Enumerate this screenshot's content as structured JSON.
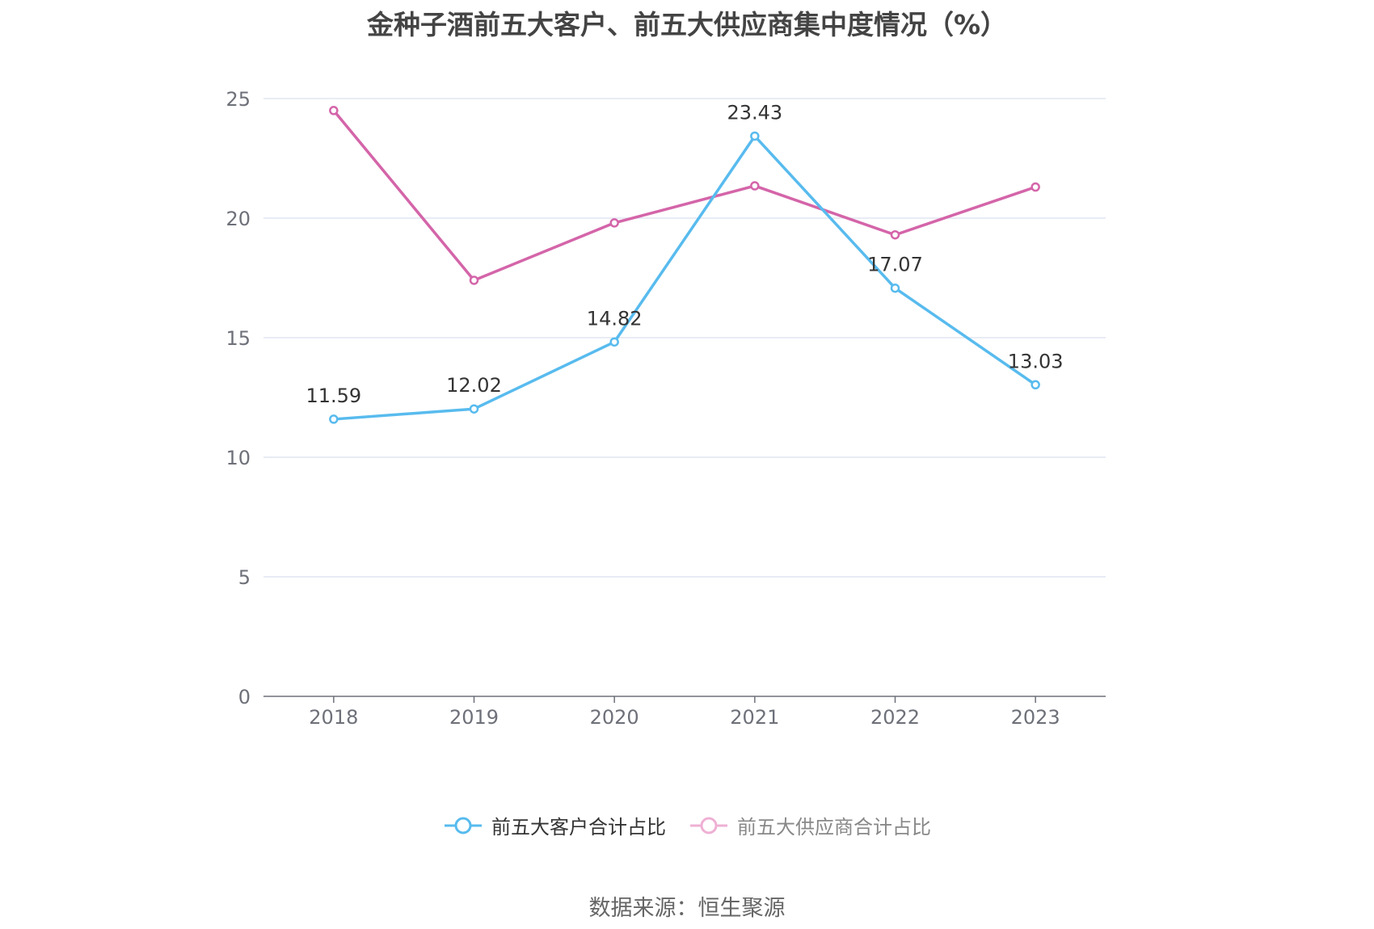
{
  "chart_data": {
    "type": "line",
    "title": "金种子酒前五大客户、前五大供应商集中度情况（%）",
    "categories": [
      "2018",
      "2019",
      "2020",
      "2021",
      "2022",
      "2023"
    ],
    "series": [
      {
        "name": "前五大客户合计占比",
        "values": [
          11.59,
          12.02,
          14.82,
          23.43,
          17.07,
          13.03
        ],
        "data_labels": [
          "11.59",
          "12.02",
          "14.82",
          "23.43",
          "17.07",
          "13.03"
        ],
        "color": "#58bbee"
      },
      {
        "name": "前五大供应商合计占比",
        "values": [
          24.5,
          17.4,
          19.8,
          21.35,
          19.3,
          21.3
        ],
        "color": "#d465a9"
      }
    ],
    "ylim": [
      0,
      25
    ],
    "yticks": [
      "0",
      "5",
      "10",
      "15",
      "20",
      "25"
    ],
    "grid": true,
    "legend": "bottom-center",
    "xlabel": "",
    "ylabel": ""
  },
  "legend_inactive_color": "#efb0d4",
  "source": "数据来源：恒生聚源"
}
